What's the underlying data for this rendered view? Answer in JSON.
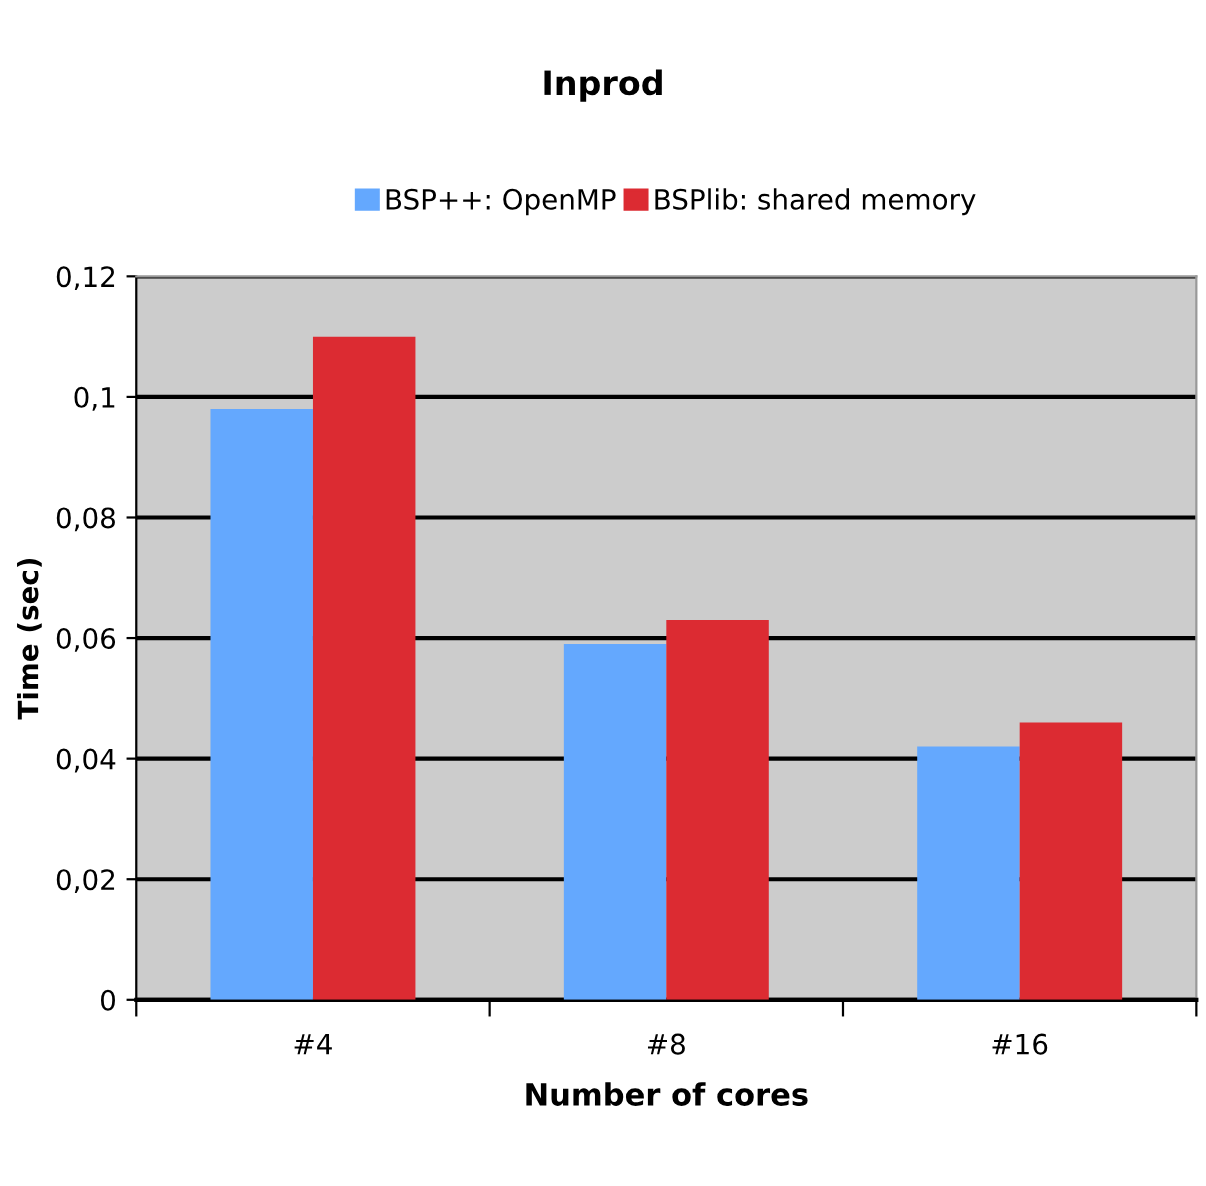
{
  "chart_data": {
    "type": "bar",
    "title": "Inprod",
    "xlabel": "Number of cores",
    "ylabel": "Time (sec)",
    "categories": [
      "#4",
      "#8",
      "#16"
    ],
    "series": [
      {
        "name": "BSP++: OpenMP",
        "color": "#64a8fe",
        "values": [
          0.098,
          0.059,
          0.042
        ]
      },
      {
        "name": "BSPlib: shared memory",
        "color": "#dc2b32",
        "values": [
          0.11,
          0.063,
          0.046
        ]
      }
    ],
    "ylim": [
      0,
      0.12
    ],
    "yticks": [
      {
        "value": 0,
        "label": "0"
      },
      {
        "value": 0.02,
        "label": "0,02"
      },
      {
        "value": 0.04,
        "label": "0,04"
      },
      {
        "value": 0.06,
        "label": "0,06"
      },
      {
        "value": 0.08,
        "label": "0,08"
      },
      {
        "value": 0.1,
        "label": "0,1"
      },
      {
        "value": 0.12,
        "label": "0,12"
      }
    ],
    "grid": "y",
    "legend": "top"
  }
}
